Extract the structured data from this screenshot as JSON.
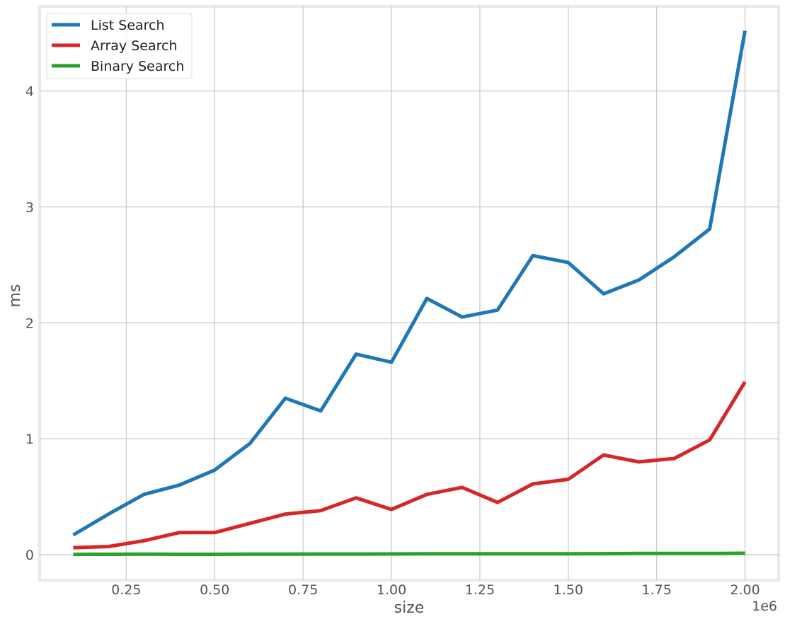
{
  "chart_data": {
    "type": "line",
    "title": "",
    "xlabel": "size",
    "ylabel": "ms",
    "x_offset_label": "1e6",
    "xlim": [
      0.005,
      2.095
    ],
    "ylim": [
      -0.22,
      4.73
    ],
    "x_ticks": [
      0.25,
      0.5,
      0.75,
      1.0,
      1.25,
      1.5,
      1.75,
      2.0
    ],
    "x_tick_labels": [
      "0.25",
      "0.50",
      "0.75",
      "1.00",
      "1.25",
      "1.50",
      "1.75",
      "2.00"
    ],
    "y_ticks": [
      0,
      1,
      2,
      3,
      4
    ],
    "y_tick_labels": [
      "0",
      "1",
      "2",
      "3",
      "4"
    ],
    "grid": true,
    "legend_position": "top-left",
    "x": [
      0.1,
      0.2,
      0.3,
      0.4,
      0.5,
      0.6,
      0.7,
      0.8,
      0.9,
      1.0,
      1.1,
      1.2,
      1.3,
      1.4,
      1.5,
      1.6,
      1.7,
      1.8,
      1.9,
      2.0
    ],
    "series": [
      {
        "name": "List Search",
        "color": "#1f77b4",
        "values": [
          0.17,
          0.35,
          0.52,
          0.6,
          0.73,
          0.96,
          1.35,
          1.24,
          1.73,
          1.66,
          2.21,
          2.05,
          2.11,
          2.58,
          2.52,
          2.25,
          2.37,
          2.57,
          2.81,
          4.52
        ]
      },
      {
        "name": "Array Search",
        "color": "#d62728",
        "values": [
          0.06,
          0.07,
          0.12,
          0.19,
          0.19,
          0.27,
          0.35,
          0.38,
          0.49,
          0.39,
          0.52,
          0.58,
          0.45,
          0.61,
          0.65,
          0.86,
          0.8,
          0.83,
          0.99,
          1.49
        ]
      },
      {
        "name": "Binary Search",
        "color": "#2ca02c",
        "values": [
          0.002,
          0.003,
          0.004,
          0.003,
          0.003,
          0.004,
          0.004,
          0.005,
          0.005,
          0.006,
          0.007,
          0.007,
          0.007,
          0.007,
          0.007,
          0.008,
          0.01,
          0.01,
          0.01,
          0.012
        ]
      }
    ]
  }
}
